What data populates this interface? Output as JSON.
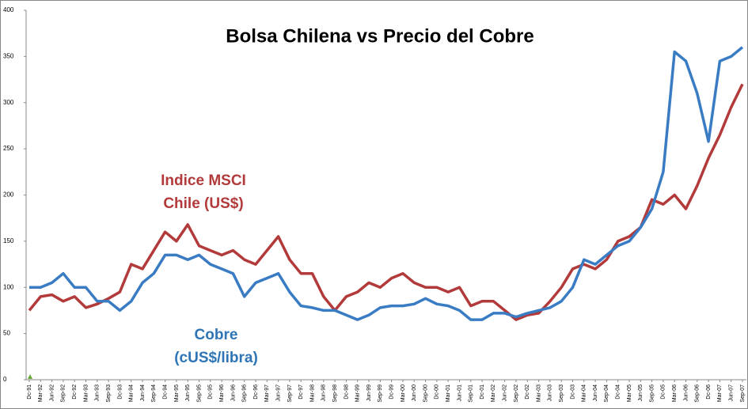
{
  "chart_data": {
    "type": "line",
    "title": "Bolsa Chilena vs Precio del Cobre",
    "annotations": [
      {
        "lines": [
          "Indice MSCI",
          "Chile (US$)"
        ],
        "color": "#b23a3a"
      },
      {
        "lines": [
          "Cobre",
          "(cUS$/libra)"
        ],
        "color": "#2e75b6"
      }
    ],
    "categories": [
      "Dc-91",
      "Mar-92",
      "Jun-92",
      "Sep-92",
      "Dc-92",
      "Mar-93",
      "Jun-93",
      "Sep-93",
      "Dc-93",
      "Mar-94",
      "Jun-94",
      "Sep-94",
      "Dc-94",
      "Mar-95",
      "Jun-95",
      "Sep-95",
      "Dc-95",
      "Mar-96",
      "Jun-96",
      "Sep-96",
      "Dc-96",
      "Mar-97",
      "Jun-97",
      "Sep-97",
      "Dc-97",
      "Mar-98",
      "Jun-98",
      "Sep-98",
      "Dc-98",
      "Mar-99",
      "Jun-99",
      "Sep-99",
      "Dc-99",
      "Mar-00",
      "Jun-00",
      "Sep-00",
      "Dc-00",
      "Mar-01",
      "Jun-01",
      "Sep-01",
      "Dc-01",
      "Mar-02",
      "Jun-02",
      "Sep-02",
      "Dc-02",
      "Mar-03",
      "Jun-03",
      "Sep-03",
      "Dc-03",
      "Mar-04",
      "Jun-04",
      "Sep-04",
      "Dc-04",
      "Mar-05",
      "Jun-05",
      "Sep-05",
      "Dc-05",
      "Mar-06",
      "Jun-06",
      "Sep-06",
      "Dc-06",
      "Mar-07",
      "Jun-07",
      "Sep-07"
    ],
    "series": [
      {
        "color": "#b23a3a",
        "values": [
          75,
          90,
          92,
          85,
          90,
          78,
          82,
          88,
          95,
          125,
          120,
          140,
          160,
          150,
          168,
          145,
          140,
          135,
          140,
          130,
          125,
          140,
          155,
          130,
          115,
          115,
          90,
          75,
          90,
          95,
          105,
          100,
          110,
          115,
          105,
          100,
          100,
          95,
          100,
          80,
          85,
          85,
          75,
          65,
          70,
          72,
          85,
          100,
          120,
          125,
          120,
          130,
          150,
          155,
          165,
          195,
          190,
          200,
          185,
          210,
          240,
          265,
          295,
          320
        ]
      },
      {
        "color": "#3a7cc4",
        "values": [
          100,
          100,
          105,
          115,
          100,
          100,
          85,
          85,
          75,
          85,
          105,
          115,
          135,
          135,
          130,
          135,
          125,
          120,
          115,
          90,
          105,
          110,
          115,
          95,
          80,
          78,
          75,
          75,
          70,
          65,
          70,
          78,
          80,
          80,
          82,
          88,
          82,
          80,
          75,
          65,
          65,
          72,
          72,
          68,
          72,
          75,
          78,
          85,
          100,
          130,
          125,
          135,
          145,
          150,
          165,
          185,
          225,
          355,
          345,
          310,
          258,
          345,
          350,
          360
        ]
      }
    ],
    "ylim": [
      0,
      400
    ],
    "yticks": [
      0,
      50,
      100,
      150,
      200,
      250,
      300,
      350,
      400
    ],
    "grid": false
  }
}
